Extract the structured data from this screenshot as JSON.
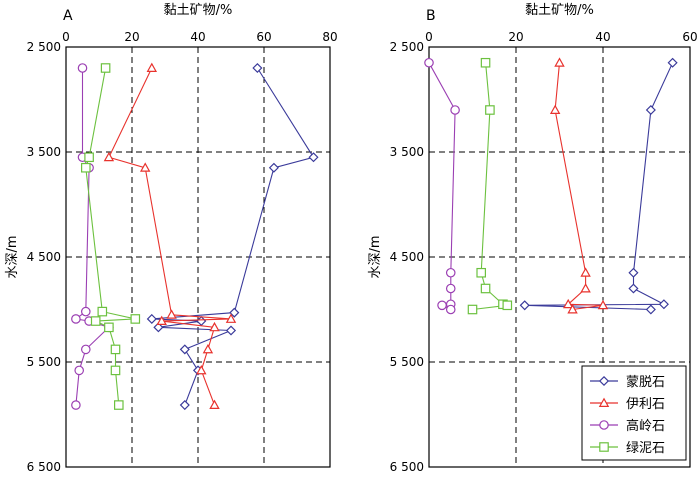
{
  "chart_data": [
    {
      "type": "line",
      "panel_label": "A",
      "xlabel": "黏土矿物/%",
      "ylabel": "水深/m",
      "xlim": [
        0,
        80
      ],
      "x_ticks": [
        0,
        20,
        40,
        60,
        80
      ],
      "x_tick_labels": [
        "0",
        "20",
        "40",
        "60",
        "80"
      ],
      "ylim": [
        2500,
        6500
      ],
      "y_inverted": true,
      "y_ticks": [
        2500,
        3500,
        4500,
        5500,
        6500
      ],
      "y_tick_labels": [
        "2 500",
        "3 500",
        "4 500",
        "5 500",
        "6 500"
      ],
      "grid": "dashed",
      "series": [
        {
          "name": "蒙脱石",
          "color": "#3a3a9a",
          "marker": "diamond",
          "x": [
            58,
            75,
            63,
            51,
            26,
            41,
            28,
            50,
            36,
            40,
            36
          ],
          "y": [
            2700,
            3550,
            3650,
            5030,
            5090,
            5110,
            5170,
            5200,
            5380,
            5580,
            5910
          ]
        },
        {
          "name": "伊利石",
          "color": "#e8322d",
          "marker": "triangle",
          "x": [
            26,
            13,
            24,
            32,
            50,
            29,
            45,
            43,
            41,
            45
          ],
          "y": [
            2700,
            3550,
            3650,
            5050,
            5090,
            5110,
            5170,
            5380,
            5580,
            5910
          ]
        },
        {
          "name": "高岭石",
          "color": "#9b3fb3",
          "marker": "circle",
          "x": [
            5,
            5,
            7,
            6,
            3,
            7,
            13,
            6,
            4,
            3
          ],
          "y": [
            2700,
            3550,
            3650,
            5020,
            5090,
            5110,
            5170,
            5380,
            5580,
            5910
          ]
        },
        {
          "name": "绿泥石",
          "color": "#6cc13f",
          "marker": "square",
          "x": [
            12,
            7,
            6,
            11,
            21,
            9,
            13,
            15,
            15,
            16
          ],
          "y": [
            2700,
            3550,
            3650,
            5020,
            5090,
            5110,
            5170,
            5380,
            5580,
            5910
          ]
        }
      ]
    },
    {
      "type": "line",
      "panel_label": "B",
      "xlabel": "黏土矿物/%",
      "ylabel": "水深/m",
      "xlim": [
        0,
        60
      ],
      "x_ticks": [
        0,
        20,
        40,
        60
      ],
      "x_tick_labels": [
        "0",
        "20",
        "40",
        "60"
      ],
      "ylim": [
        2500,
        6500
      ],
      "y_inverted": true,
      "y_ticks": [
        2500,
        3500,
        4500,
        5500,
        6500
      ],
      "y_tick_labels": [
        "2 500",
        "3 500",
        "4 500",
        "5 500",
        "6 500"
      ],
      "grid": "dashed",
      "series": [
        {
          "name": "蒙脱石",
          "color": "#3a3a9a",
          "marker": "diamond",
          "x": [
            56,
            51,
            47,
            47,
            54,
            22,
            51
          ],
          "y": [
            2650,
            3100,
            4650,
            4800,
            4950,
            4960,
            5000
          ]
        },
        {
          "name": "伊利石",
          "color": "#e8322d",
          "marker": "triangle",
          "x": [
            30,
            29,
            36,
            36,
            32,
            40,
            33
          ],
          "y": [
            2650,
            3100,
            4650,
            4800,
            4950,
            4960,
            5000
          ]
        },
        {
          "name": "高岭石",
          "color": "#9b3fb3",
          "marker": "circle",
          "x": [
            0,
            6,
            5,
            5,
            5,
            3,
            5
          ],
          "y": [
            2650,
            3100,
            4650,
            4800,
            4950,
            4960,
            5000
          ]
        },
        {
          "name": "绿泥石",
          "color": "#6cc13f",
          "marker": "square",
          "x": [
            13,
            14,
            12,
            13,
            17,
            18,
            10
          ],
          "y": [
            2650,
            3100,
            4650,
            4800,
            4950,
            4960,
            5000
          ]
        }
      ]
    }
  ],
  "legend": {
    "placement": "bottom-right",
    "entries": [
      "蒙脱石",
      "伊利石",
      "高岭石",
      "绿泥石"
    ]
  }
}
